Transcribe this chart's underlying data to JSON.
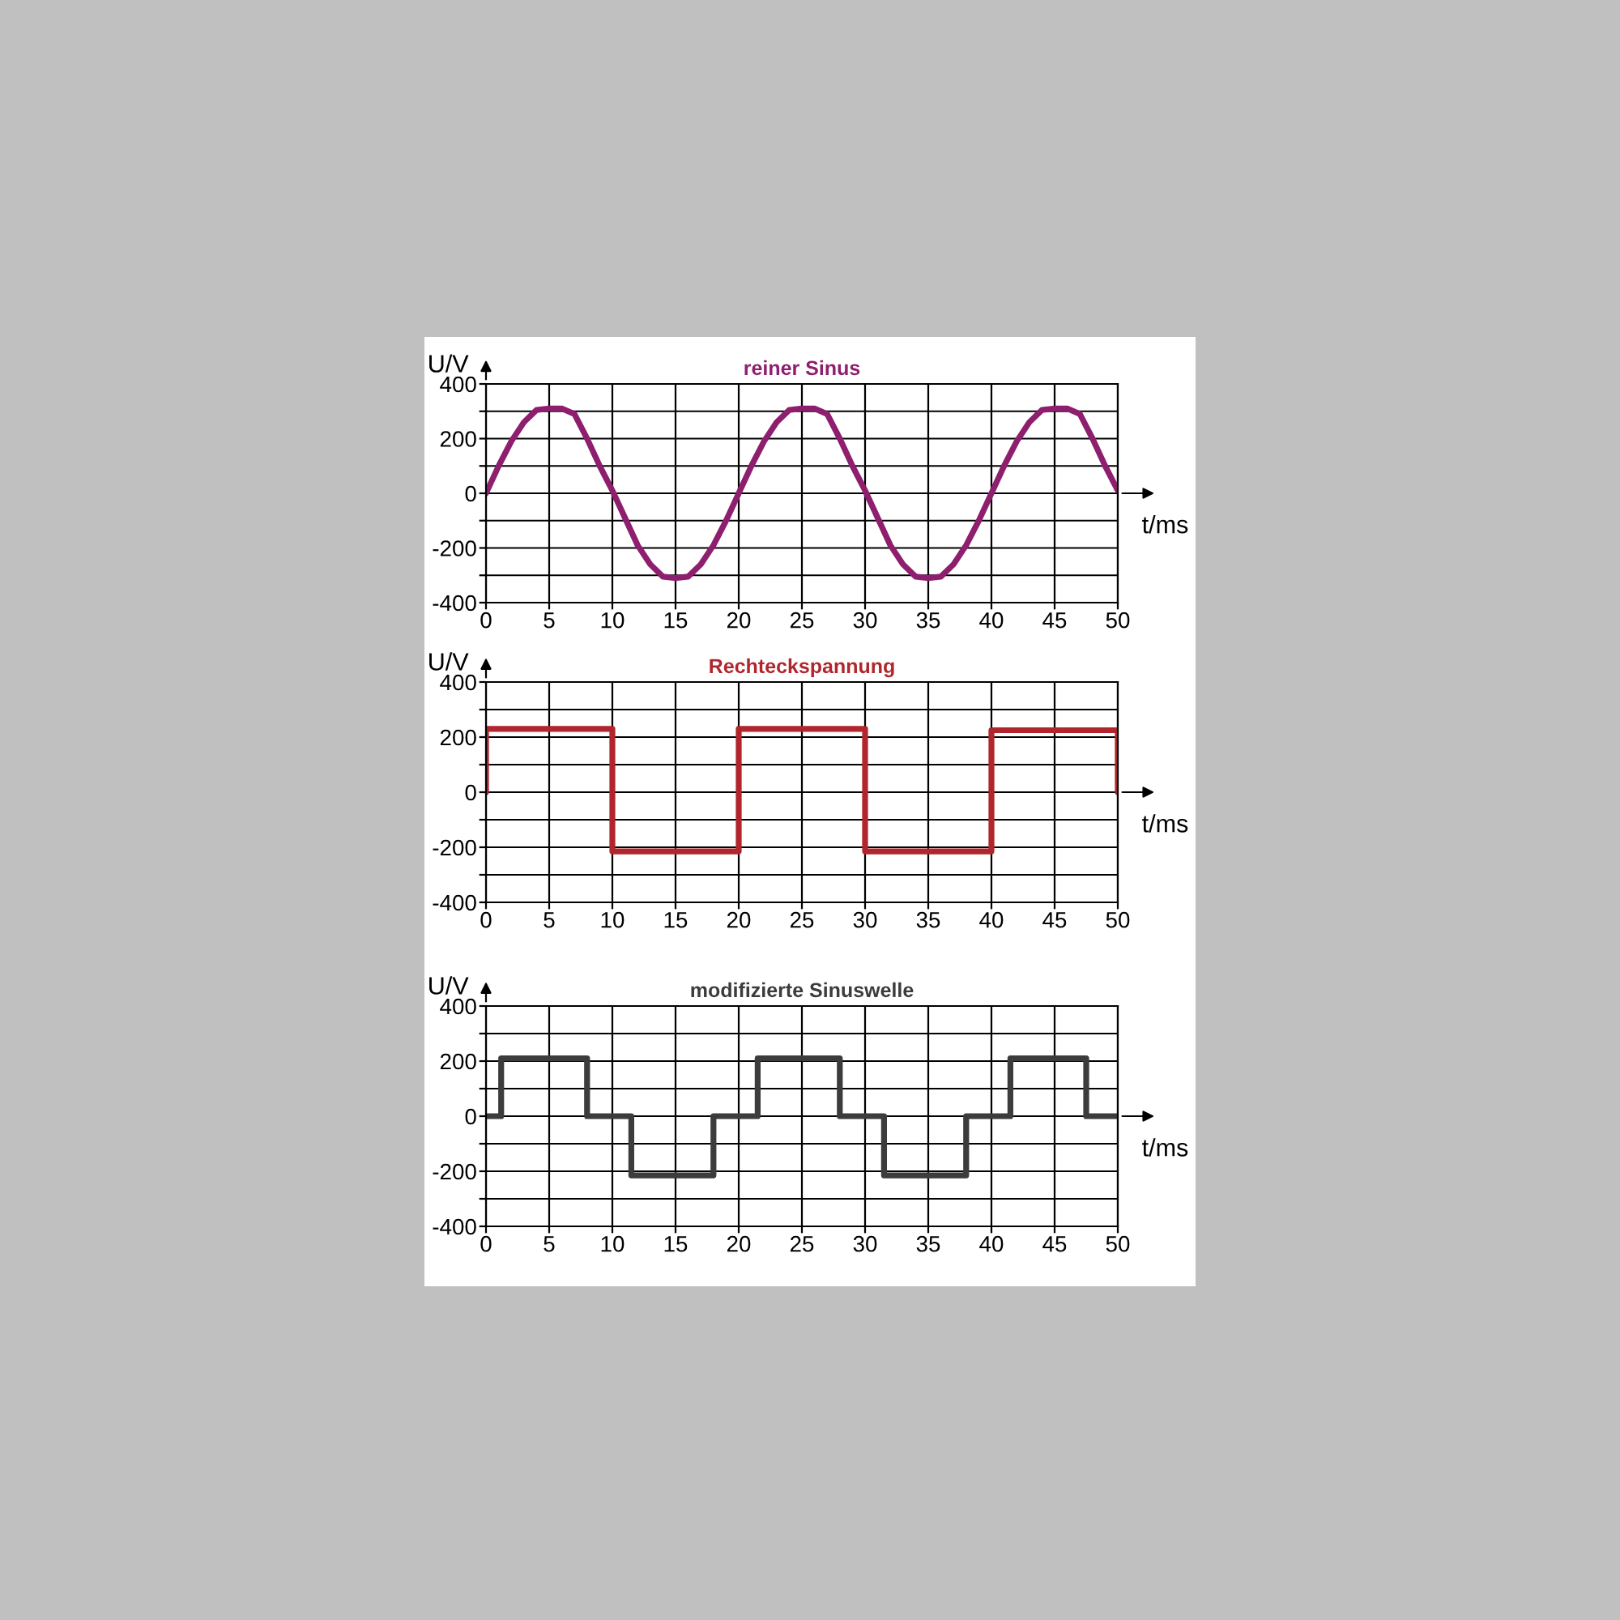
{
  "chart_data": [
    {
      "type": "line",
      "title": "reiner Sinus",
      "xlabel": "t/ms",
      "ylabel": "U/V",
      "x": [
        0,
        1,
        2,
        3,
        4,
        5,
        6,
        7,
        8,
        9,
        10,
        11,
        12,
        13,
        14,
        15,
        16,
        17,
        18,
        19,
        20,
        21,
        22,
        23,
        24,
        25,
        26,
        27,
        28,
        29,
        30,
        31,
        32,
        33,
        34,
        35,
        36,
        37,
        38,
        39,
        40,
        41,
        42,
        43,
        44,
        45,
        46,
        47,
        48,
        49,
        50
      ],
      "series": [
        {
          "color": "#8e1f6e",
          "values": [
            0,
            100,
            190,
            260,
            305,
            310,
            310,
            290,
            200,
            100,
            10,
            -90,
            -190,
            -260,
            -305,
            -310,
            -305,
            -260,
            -190,
            -100,
            0,
            100,
            190,
            260,
            305,
            310,
            310,
            290,
            200,
            100,
            10,
            -90,
            -190,
            -260,
            -305,
            -310,
            -305,
            -260,
            -190,
            -100,
            0,
            100,
            190,
            260,
            305,
            310,
            310,
            290,
            200,
            100,
            10
          ]
        }
      ],
      "xlim": [
        0,
        50
      ],
      "xticks": [
        0,
        5,
        10,
        15,
        20,
        25,
        30,
        35,
        40,
        45,
        50
      ],
      "ylim": [
        -400,
        400
      ],
      "yticks": [
        -400,
        {
          "value": -300,
          "label": null
        },
        -200,
        {
          "value": -100,
          "label": null
        },
        0,
        {
          "value": 100,
          "label": null
        },
        200,
        {
          "value": 300,
          "label": null
        },
        400
      ],
      "grid": true,
      "legend": false
    },
    {
      "type": "line",
      "title": "Rechteckspannung",
      "xlabel": "t/ms",
      "ylabel": "U/V",
      "x": [
        0,
        0,
        10,
        10,
        20,
        20,
        30,
        30,
        40,
        40,
        50,
        50
      ],
      "series": [
        {
          "color": "#b0262c",
          "values": [
            0,
            230,
            230,
            -215,
            -215,
            230,
            230,
            -215,
            -215,
            225,
            225,
            0
          ]
        }
      ],
      "xlim": [
        0,
        50
      ],
      "xticks": [
        0,
        5,
        10,
        15,
        20,
        25,
        30,
        35,
        40,
        45,
        50
      ],
      "ylim": [
        -400,
        400
      ],
      "yticks": [
        -400,
        {
          "value": -300,
          "label": null
        },
        -200,
        {
          "value": -100,
          "label": null
        },
        0,
        {
          "value": 100,
          "label": null
        },
        200,
        {
          "value": 300,
          "label": null
        },
        400
      ],
      "grid": true,
      "legend": false
    },
    {
      "type": "step",
      "title": "modifizierte Sinuswelle",
      "xlabel": "t/ms",
      "ylabel": "U/V",
      "x": [
        0,
        1.2,
        8,
        11.5,
        18,
        21.5,
        28,
        31.5,
        38,
        41.5,
        47.5,
        50
      ],
      "series": [
        {
          "color": "#3c3c3c",
          "values": [
            0,
            210,
            0,
            -215,
            0,
            210,
            0,
            -215,
            0,
            210,
            0,
            0
          ]
        }
      ],
      "xlim": [
        0,
        50
      ],
      "xticks": [
        0,
        5,
        10,
        15,
        20,
        25,
        30,
        35,
        40,
        45,
        50
      ],
      "ylim": [
        -400,
        400
      ],
      "yticks": [
        -400,
        {
          "value": -300,
          "label": null
        },
        -200,
        {
          "value": -100,
          "label": null
        },
        0,
        {
          "value": 100,
          "label": null
        },
        200,
        {
          "value": 300,
          "label": null
        },
        400
      ],
      "grid": true,
      "legend": false
    }
  ]
}
